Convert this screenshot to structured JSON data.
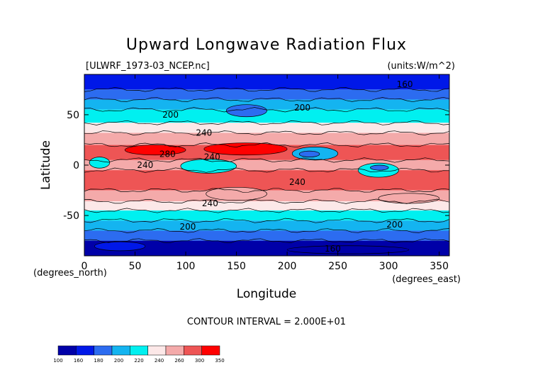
{
  "chart_data": {
    "type": "heatmap",
    "title": "Upward Longwave Radiation Flux",
    "file_label": "[ULWRF_1973-03_NCEP.nc]",
    "units_label": "(units:W/m^2)",
    "xlabel": "Longitude",
    "ylabel": "Latitude",
    "x_unit_label": "(degrees_east)",
    "y_unit_label": "(degrees_north)",
    "xlim": [
      0,
      360
    ],
    "ylim": [
      -90,
      90
    ],
    "x_ticks": [
      0,
      50,
      100,
      150,
      200,
      250,
      300,
      350
    ],
    "y_ticks": [
      -50,
      0,
      50
    ],
    "contour_interval_text": "CONTOUR INTERVAL = 2.000E+01",
    "contour_labels": [
      {
        "text": "160",
        "lon": 316,
        "lat": 80
      },
      {
        "text": "200",
        "lon": 85,
        "lat": 50
      },
      {
        "text": "200",
        "lon": 215,
        "lat": 57
      },
      {
        "text": "240",
        "lon": 118,
        "lat": 32
      },
      {
        "text": "280",
        "lon": 82,
        "lat": 11
      },
      {
        "text": "240",
        "lon": 126,
        "lat": 8
      },
      {
        "text": "240",
        "lon": 60,
        "lat": 0
      },
      {
        "text": "240",
        "lon": 210,
        "lat": -17
      },
      {
        "text": "240",
        "lon": 124,
        "lat": -38
      },
      {
        "text": "200",
        "lon": 102,
        "lat": -61
      },
      {
        "text": "200",
        "lon": 306,
        "lat": -59
      },
      {
        "text": "160",
        "lon": 245,
        "lat": -83
      }
    ],
    "colorbar": {
      "levels": [
        "100",
        "160",
        "180",
        "200",
        "220",
        "240",
        "260",
        "300",
        "350"
      ],
      "colors": [
        "#0000a8",
        "#0018e8",
        "#2c6cf0",
        "#14b4f0",
        "#00f0f0",
        "#fce8e8",
        "#f4aaaa",
        "#ee5555",
        "#ff0000"
      ]
    },
    "bands": [
      {
        "lat": [
          75,
          90
        ],
        "band": 1
      },
      {
        "lat": [
          65,
          75
        ],
        "band": 2
      },
      {
        "lat": [
          55,
          65
        ],
        "band": 3
      },
      {
        "lat": [
          42,
          55
        ],
        "band": 4
      },
      {
        "lat": [
          32,
          42
        ],
        "band": 5
      },
      {
        "lat": [
          20,
          32
        ],
        "band": 6
      },
      {
        "lat": [
          5,
          20
        ],
        "band": 7
      },
      {
        "lat": [
          -5,
          5
        ],
        "band": 6
      },
      {
        "lat": [
          -25,
          -5
        ],
        "band": 7
      },
      {
        "lat": [
          -36,
          -25
        ],
        "band": 6
      },
      {
        "lat": [
          -45,
          -36
        ],
        "band": 5
      },
      {
        "lat": [
          -55,
          -45
        ],
        "band": 4
      },
      {
        "lat": [
          -65,
          -55
        ],
        "band": 3
      },
      {
        "lat": [
          -75,
          -65
        ],
        "band": 2
      },
      {
        "lat": [
          -90,
          -75
        ],
        "band": 0
      }
    ],
    "patches": [
      {
        "lon": [
          40,
          100
        ],
        "lat": [
          10,
          20
        ],
        "band": 8
      },
      {
        "lon": [
          118,
          200
        ],
        "lat": [
          10,
          22
        ],
        "band": 8
      },
      {
        "lon": [
          5,
          25
        ],
        "lat": [
          -3,
          8
        ],
        "band": 4
      },
      {
        "lon": [
          95,
          150
        ],
        "lat": [
          -8,
          6
        ],
        "band": 4
      },
      {
        "lon": [
          205,
          250
        ],
        "lat": [
          5,
          18
        ],
        "band": 3
      },
      {
        "lon": [
          212,
          232
        ],
        "lat": [
          8,
          14
        ],
        "band": 2
      },
      {
        "lon": [
          270,
          310
        ],
        "lat": [
          -12,
          2
        ],
        "band": 4
      },
      {
        "lon": [
          282,
          300
        ],
        "lat": [
          -5,
          0
        ],
        "band": 2
      },
      {
        "lon": [
          120,
          180
        ],
        "lat": [
          -35,
          -22
        ],
        "band": 6
      },
      {
        "lon": [
          290,
          350
        ],
        "lat": [
          -38,
          -28
        ],
        "band": 6
      },
      {
        "lon": [
          140,
          180
        ],
        "lat": [
          48,
          60
        ],
        "band": 2
      },
      {
        "lon": [
          10,
          60
        ],
        "lat": [
          -85,
          -76
        ],
        "band": 1
      },
      {
        "lon": [
          200,
          320
        ],
        "lat": [
          -88,
          -80
        ],
        "band": 0
      }
    ]
  }
}
